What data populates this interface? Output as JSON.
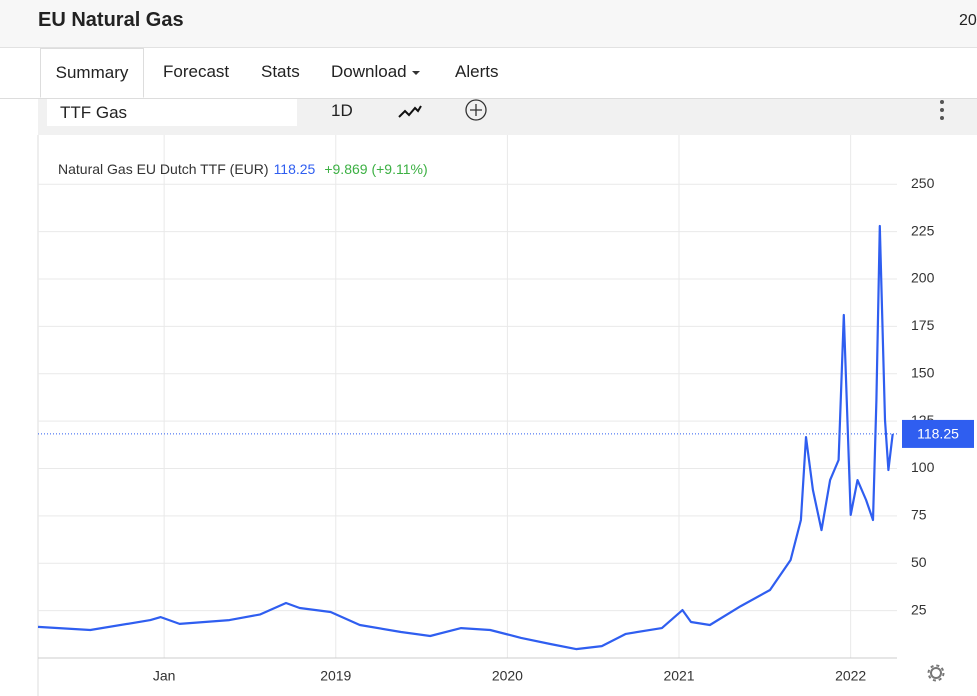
{
  "header": {
    "title": "EU Natural Gas",
    "right_text": "20"
  },
  "tabs": [
    "Summary",
    "Forecast",
    "Stats",
    "Download",
    "Alerts"
  ],
  "toolbar": {
    "search": "TTF Gas",
    "interval": "1D"
  },
  "chart_data": {
    "type": "line",
    "series": [
      {
        "name": "Natural Gas EU Dutch TTF (EUR)",
        "color": "#2f5ef0",
        "values": [
          16.4,
          14.8,
          20,
          21.6,
          18,
          20,
          23,
          29,
          26.4,
          24.3,
          17.4,
          13.7,
          11.6,
          15.8,
          14.8,
          10.6,
          7.4,
          4.7,
          6.3,
          12.7,
          15.8,
          25.3,
          19,
          17.4,
          27.4,
          35.9,
          51.7,
          72.8,
          116.6,
          88.7,
          67.5,
          93.9,
          104.5,
          181,
          75.5,
          93.9,
          83.4,
          72.8,
          136,
          228,
          125.6,
          99.2,
          118.25
        ]
      }
    ],
    "x": [
      2017.265,
      2017.57,
      2017.92,
      2017.98,
      2018.09,
      2018.38,
      2018.56,
      2018.71,
      2018.79,
      2018.97,
      2019.14,
      2019.38,
      2019.55,
      2019.73,
      2019.9,
      2020.08,
      2020.25,
      2020.4,
      2020.55,
      2020.69,
      2020.9,
      2021.02,
      2021.07,
      2021.18,
      2021.36,
      2021.53,
      2021.65,
      2021.71,
      2021.74,
      2021.78,
      2021.83,
      2021.88,
      2021.93,
      2021.96,
      2022.0,
      2022.04,
      2022.09,
      2022.13,
      2022.15,
      2022.17,
      2022.2,
      2022.22,
      2022.245
    ],
    "price": 118.25,
    "change": "+9.869 (+9.11%)",
    "xlim": [
      2017.265,
      2022.27
    ],
    "xticks": [
      {
        "value": 2018,
        "label": "Jan"
      },
      2019,
      2020,
      2021,
      2022
    ],
    "ylim": [
      0,
      276
    ],
    "yticks": [
      25,
      50,
      75,
      100,
      125,
      150,
      175,
      200,
      225,
      250
    ],
    "grid": true
  }
}
